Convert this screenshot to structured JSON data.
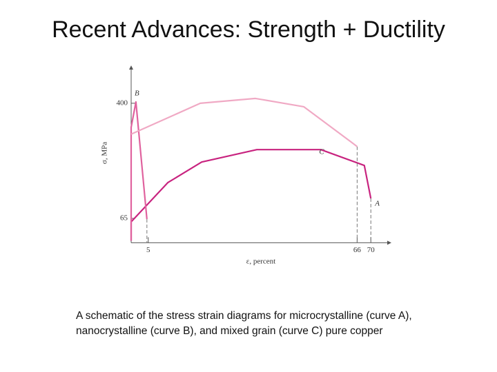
{
  "chart_data": {
    "type": "line",
    "title": "Recent Advances: Strength + Ductility",
    "caption": [
      "A schematic of the stress strain diagrams for microcrystalline (curve A),",
      "nanocrystalline (curve B), and mixed grain (curve C) pure copper"
    ],
    "x_label": "ε,  percent",
    "y_label": "σ,  MPa",
    "xlim": [
      0,
      76
    ],
    "ylim": [
      0,
      510
    ],
    "xticks": [
      5,
      66,
      70
    ],
    "yticks": [
      65,
      400
    ],
    "series": [
      {
        "name": "A",
        "color": "#c8237f",
        "x": [
          0,
          0,
          10.7,
          20.6,
          36.7,
          55.4,
          68.1,
          70
        ],
        "values": [
          0,
          55,
          169,
          229,
          265,
          265,
          219,
          123
        ]
      },
      {
        "name": "B",
        "color": "#e0629e",
        "x": [
          0,
          0,
          1.4,
          4.6
        ],
        "values": [
          0,
          330,
          404,
          63
        ]
      },
      {
        "name": "C",
        "color": "#f0a9c4",
        "x": [
          0,
          20.2,
          36.3,
          50.4,
          66
        ],
        "values": [
          310,
          400,
          414,
          390,
          274
        ]
      }
    ]
  }
}
